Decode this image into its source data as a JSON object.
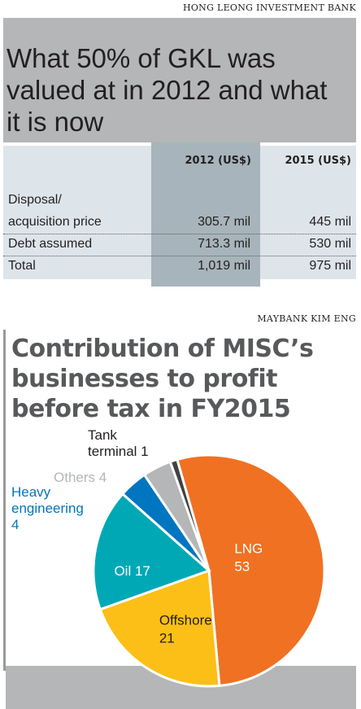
{
  "section1": {
    "source": "HONG LEONG INVESTMENT BANK",
    "title": "What 50% of GKL was valued at in 2012 and what it is now",
    "columns": [
      "2012 (US$)",
      "2015 (US$)"
    ],
    "rows": [
      {
        "label_lines": [
          "Disposal/",
          "acquisition price"
        ],
        "v2012": "305.7 mil",
        "v2015": "445 mil"
      },
      {
        "label_lines": [
          "Debt assumed"
        ],
        "v2012": "713.3 mil",
        "v2015": "530 mil"
      },
      {
        "label_lines": [
          "Total"
        ],
        "v2012": "1,019 mil",
        "v2015": "975 mil"
      }
    ],
    "colors": {
      "title_band": "#b4b6b7",
      "table_bg": "#dde5ea",
      "highlight_column": "#a7b4bb"
    }
  },
  "section2": {
    "source": "MAYBANK KIM ENG",
    "title": "Contribution of MISC’s businesses to profit before tax in FY2015"
  },
  "chart_data": {
    "type": "pie",
    "title": "Contribution of MISC’s businesses to profit before tax in FY2015",
    "slices": [
      {
        "label": "LNG",
        "value": 53,
        "color": "#f07122",
        "label_color": "#ffffff",
        "label_position": "inside"
      },
      {
        "label": "Offshore",
        "value": 21,
        "color": "#fcbf17",
        "label_color": "#231f20",
        "label_position": "inside"
      },
      {
        "label": "Oil",
        "value": 17,
        "color": "#00a8b5",
        "label_color": "#ffffff",
        "label_position": "inside"
      },
      {
        "label": "Heavy engineering",
        "value": 4,
        "color": "#0076c0",
        "label_color": "#0076c0",
        "label_position": "outside"
      },
      {
        "label": "Others",
        "value": 4,
        "color": "#b4b6b7",
        "label_color": "#b4b6b7",
        "label_position": "outside"
      },
      {
        "label": "Tank terminal",
        "value": 1,
        "color": "#414042",
        "label_color": "#231f20",
        "label_position": "outside"
      }
    ],
    "slice_labels": [
      {
        "lines": [
          "LNG",
          "53"
        ]
      },
      {
        "lines": [
          "Offshore",
          "21"
        ]
      },
      {
        "lines": [
          "Oil 17"
        ]
      },
      {
        "lines": [
          "Heavy",
          "engineering",
          "4"
        ]
      },
      {
        "lines": [
          "Others 4"
        ]
      },
      {
        "lines": [
          "Tank",
          "terminal 1"
        ]
      }
    ]
  }
}
